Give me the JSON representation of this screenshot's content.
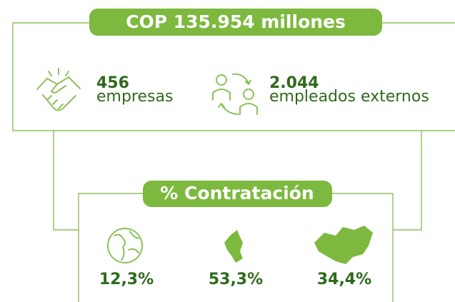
{
  "header": {
    "title": "COP 135.954 millones"
  },
  "stats": [
    {
      "value": "456",
      "label": "empresas"
    },
    {
      "value": "2.044",
      "label": "empleados externos"
    }
  ],
  "section": {
    "title": "% Contratación",
    "items": [
      {
        "value": "12,3%"
      },
      {
        "value": "53,3%"
      },
      {
        "value": "34,4%"
      }
    ]
  }
}
